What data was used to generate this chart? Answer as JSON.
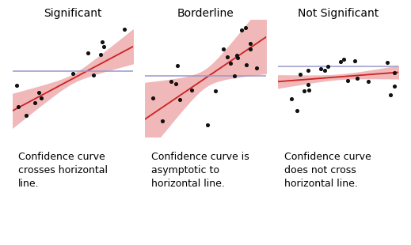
{
  "titles": [
    "Significant",
    "Borderline",
    "Not Significant"
  ],
  "captions": [
    "Confidence curve\ncrosses horizontal\nline.",
    "Confidence curve is\nasymptotic to\nhorizontal line.",
    "Confidence curve\ndoes not cross\nhorizontal line."
  ],
  "line_color": "#cc2222",
  "band_color": "#f0b8b8",
  "hline_color": "#9999cc",
  "dot_color": "#111111",
  "background_color": "#ffffff",
  "title_fontsize": 10,
  "caption_fontsize": 9
}
